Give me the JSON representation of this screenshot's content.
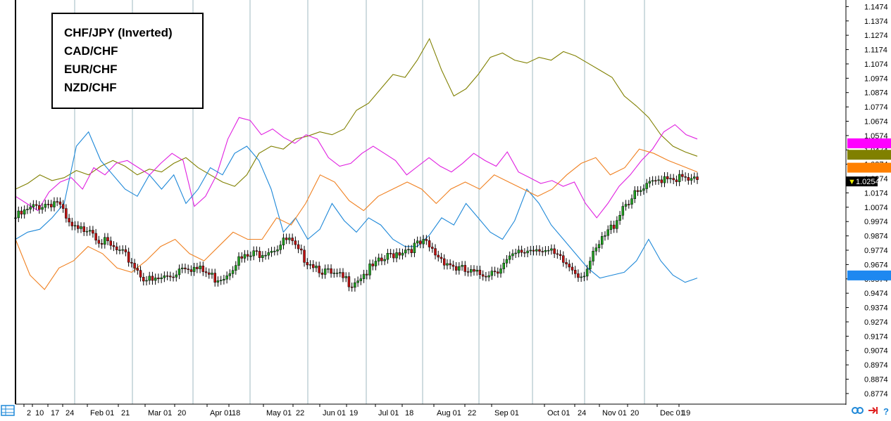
{
  "chart_data": {
    "type": "line",
    "legend": {
      "placement": "top-left",
      "entries": [
        {
          "label": "CHF/JPY (Inverted)",
          "color": "#808000"
        },
        {
          "label": "CAD/CHF",
          "color": "#e020e0"
        },
        {
          "label": "EUR/CHF",
          "color": "#1e88d8"
        },
        {
          "label": "NZD/CHF",
          "color": "#f08020"
        }
      ]
    },
    "y_axis": {
      "position": "right",
      "range": [
        0.87,
        1.152
      ],
      "ticks": [
        "1.1474",
        "1.1374",
        "1.1274",
        "1.1174",
        "1.1074",
        "1.0974",
        "1.0874",
        "1.0774",
        "1.0674",
        "1.0574",
        "1.0474",
        "1.0374",
        "1.0274",
        "1.0174",
        "1.0074",
        "0.9974",
        "0.9874",
        "0.9774",
        "0.9674",
        "0.9574",
        "0.9474",
        "0.9374",
        "0.9274",
        "0.9174",
        "0.9074",
        "0.8974",
        "0.8874",
        "0.8774"
      ]
    },
    "x_axis": {
      "labels": [
        "2",
        "10",
        "17",
        "24",
        "Feb 01",
        "21",
        "Mar 01",
        "20",
        "Apr 01",
        "18",
        "May 01",
        "22",
        "Jun 01",
        "19",
        "Jul 01",
        "18",
        "Aug 01",
        "22",
        "Sep 01",
        "Oct 01",
        "24",
        "Nov 01",
        "20",
        "Dec 01",
        "19"
      ],
      "month_gridlines": [
        "Feb",
        "Mar",
        "Apr",
        "May",
        "Jun",
        "Jul",
        "Aug",
        "Sep",
        "Oct",
        "Nov",
        "Dec"
      ]
    },
    "current_price": "1.0254",
    "series": [
      {
        "name": "CHF/JPY (Inverted)",
        "color": "#808000",
        "values": [
          1.02,
          1.024,
          1.03,
          1.026,
          1.028,
          1.033,
          1.03,
          1.036,
          1.04,
          1.036,
          1.03,
          1.034,
          1.032,
          1.038,
          1.042,
          1.035,
          1.03,
          1.025,
          1.022,
          1.03,
          1.045,
          1.05,
          1.048,
          1.055,
          1.057,
          1.06,
          1.058,
          1.062,
          1.075,
          1.08,
          1.09,
          1.1,
          1.098,
          1.11,
          1.125,
          1.103,
          1.085,
          1.09,
          1.1,
          1.112,
          1.115,
          1.11,
          1.108,
          1.112,
          1.11,
          1.116,
          1.113,
          1.108,
          1.103,
          1.098,
          1.085,
          1.078,
          1.07,
          1.058,
          1.05,
          1.046,
          1.043
        ]
      },
      {
        "name": "CAD/CHF",
        "color": "#e020e0",
        "values": [
          1.015,
          1.01,
          1.005,
          1.018,
          1.025,
          1.028,
          1.02,
          1.035,
          1.03,
          1.038,
          1.04,
          1.035,
          1.03,
          1.038,
          1.045,
          1.04,
          1.008,
          1.015,
          1.03,
          1.055,
          1.07,
          1.068,
          1.058,
          1.062,
          1.056,
          1.052,
          1.058,
          1.055,
          1.042,
          1.036,
          1.038,
          1.045,
          1.05,
          1.045,
          1.04,
          1.03,
          1.036,
          1.042,
          1.036,
          1.032,
          1.038,
          1.045,
          1.04,
          1.036,
          1.046,
          1.032,
          1.028,
          1.024,
          1.026,
          1.022,
          1.025,
          1.01,
          1.0,
          1.01,
          1.022,
          1.03,
          1.04,
          1.048,
          1.06,
          1.065,
          1.058,
          1.055
        ]
      },
      {
        "name": "EUR/CHF",
        "color": "#1e88d8",
        "values": [
          0.985,
          0.99,
          0.992,
          1.0,
          1.01,
          1.05,
          1.06,
          1.04,
          1.03,
          1.02,
          1.015,
          1.03,
          1.02,
          1.03,
          1.01,
          1.02,
          1.035,
          1.03,
          1.045,
          1.05,
          1.04,
          1.02,
          0.99,
          1.0,
          0.985,
          0.992,
          1.01,
          0.998,
          0.99,
          1.0,
          0.995,
          0.985,
          0.98,
          0.98,
          0.988,
          1.0,
          0.995,
          1.01,
          1.0,
          0.99,
          0.985,
          0.998,
          1.02,
          1.01,
          0.995,
          0.985,
          0.975,
          0.965,
          0.958,
          0.96,
          0.962,
          0.97,
          0.985,
          0.97,
          0.96,
          0.955,
          0.958
        ]
      },
      {
        "name": "NZD/CHF",
        "color": "#f08020",
        "values": [
          0.985,
          0.96,
          0.95,
          0.965,
          0.97,
          0.98,
          0.975,
          0.965,
          0.962,
          0.97,
          0.98,
          0.985,
          0.975,
          0.97,
          0.98,
          0.99,
          0.985,
          0.985,
          1.0,
          0.995,
          1.01,
          1.03,
          1.025,
          1.012,
          1.005,
          1.015,
          1.02,
          1.025,
          1.02,
          1.01,
          1.02,
          1.025,
          1.02,
          1.03,
          1.025,
          1.02,
          1.015,
          1.02,
          1.03,
          1.038,
          1.042,
          1.03,
          1.035,
          1.048,
          1.045,
          1.04,
          1.036,
          1.032
        ]
      },
      {
        "name": "",
        "color": "#000000",
        "values": [
          1.0,
          1.004,
          1.008,
          1.01,
          1.012,
          0.995,
          0.99,
          0.995,
          0.985,
          0.98,
          0.975,
          0.97,
          0.96,
          0.955,
          0.958,
          0.96,
          0.968,
          0.965,
          0.962,
          0.958,
          0.96,
          0.97,
          0.972,
          0.975,
          0.978,
          0.98,
          0.985,
          0.975,
          0.97,
          0.965,
          0.96,
          0.958,
          0.955,
          0.96,
          0.965,
          0.97,
          0.975,
          0.978,
          0.98,
          0.982,
          0.975,
          0.97,
          0.965,
          0.962,
          0.96,
          0.962,
          0.965,
          0.97,
          0.975,
          0.978,
          0.98,
          0.975,
          0.97,
          0.965,
          0.96,
          0.972,
          0.985,
          0.995,
          1.01,
          1.015,
          1.02,
          1.025,
          1.03,
          1.028,
          1.026,
          1.025
        ]
      }
    ]
  },
  "toolbar": {
    "bottom_left_icon": "table-icon",
    "bottom_right_icons": [
      "link-icon",
      "arrow-icon",
      "help-icon"
    ],
    "help_glyph": "?"
  }
}
